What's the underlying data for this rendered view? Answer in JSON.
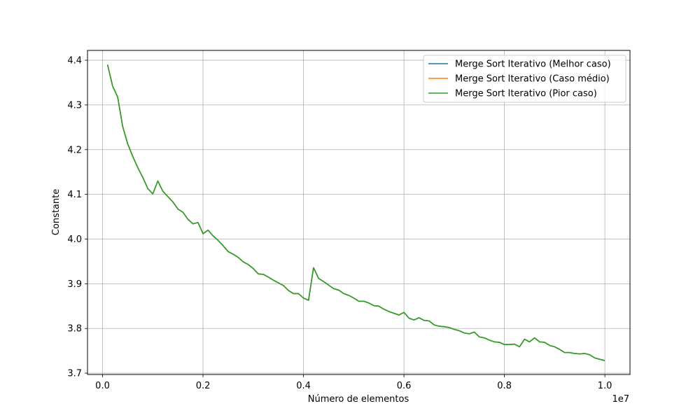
{
  "chart_data": {
    "type": "line",
    "title": "",
    "xlabel": "Número de elementos",
    "ylabel": "Constante",
    "x_offset_label": "1e7",
    "xlim": [
      -300000,
      10500000
    ],
    "ylim": [
      3.697,
      4.422
    ],
    "grid": true,
    "legend_position": "top-right",
    "x_ticks": [
      {
        "value": 0,
        "label": "0.0"
      },
      {
        "value": 2000000,
        "label": "0.2"
      },
      {
        "value": 4000000,
        "label": "0.4"
      },
      {
        "value": 6000000,
        "label": "0.6"
      },
      {
        "value": 8000000,
        "label": "0.8"
      },
      {
        "value": 10000000,
        "label": "1.0"
      }
    ],
    "y_ticks": [
      {
        "value": 3.7,
        "label": "3.7"
      },
      {
        "value": 3.8,
        "label": "3.8"
      },
      {
        "value": 3.9,
        "label": "3.9"
      },
      {
        "value": 4.0,
        "label": "4.0"
      },
      {
        "value": 4.1,
        "label": "4.1"
      },
      {
        "value": 4.2,
        "label": "4.2"
      },
      {
        "value": 4.3,
        "label": "4.3"
      },
      {
        "value": 4.4,
        "label": "4.4"
      }
    ],
    "x": [
      100000,
      200000,
      300000,
      400000,
      500000,
      600000,
      700000,
      800000,
      900000,
      1000000,
      1100000,
      1200000,
      1300000,
      1400000,
      1500000,
      1600000,
      1700000,
      1800000,
      1900000,
      2000000,
      2100000,
      2200000,
      2300000,
      2400000,
      2500000,
      2600000,
      2700000,
      2800000,
      2900000,
      3000000,
      3100000,
      3200000,
      3300000,
      3400000,
      3500000,
      3600000,
      3700000,
      3800000,
      3900000,
      4000000,
      4100000,
      4200000,
      4300000,
      4400000,
      4500000,
      4600000,
      4700000,
      4800000,
      4900000,
      5000000,
      5100000,
      5200000,
      5300000,
      5400000,
      5500000,
      5600000,
      5700000,
      5800000,
      5900000,
      6000000,
      6100000,
      6200000,
      6300000,
      6400000,
      6500000,
      6600000,
      6700000,
      6800000,
      6900000,
      7000000,
      7100000,
      7200000,
      7300000,
      7400000,
      7500000,
      7600000,
      7700000,
      7800000,
      7900000,
      8000000,
      8100000,
      8200000,
      8300000,
      8400000,
      8500000,
      8600000,
      8700000,
      8800000,
      8900000,
      9000000,
      9100000,
      9200000,
      9300000,
      9400000,
      9500000,
      9600000,
      9700000,
      9800000,
      9900000,
      10000000
    ],
    "series": [
      {
        "name": "Merge Sort Iterativo (Melhor caso)",
        "color": "#1f77b4",
        "values": [
          4.39,
          4.342,
          4.318,
          4.252,
          4.213,
          4.185,
          4.16,
          4.138,
          4.113,
          4.101,
          4.13,
          4.107,
          4.095,
          4.083,
          4.067,
          4.06,
          4.044,
          4.034,
          4.037,
          4.012,
          4.02,
          4.007,
          3.997,
          3.985,
          3.972,
          3.966,
          3.959,
          3.949,
          3.943,
          3.934,
          3.922,
          3.921,
          3.915,
          3.908,
          3.902,
          3.896,
          3.885,
          3.878,
          3.878,
          3.868,
          3.863,
          3.936,
          3.912,
          3.905,
          3.897,
          3.889,
          3.886,
          3.878,
          3.874,
          3.868,
          3.861,
          3.861,
          3.857,
          3.851,
          3.85,
          3.843,
          3.838,
          3.834,
          3.83,
          3.836,
          3.823,
          3.819,
          3.824,
          3.818,
          3.817,
          3.808,
          3.805,
          3.804,
          3.802,
          3.798,
          3.795,
          3.79,
          3.788,
          3.792,
          3.781,
          3.779,
          3.774,
          3.77,
          3.769,
          3.764,
          3.764,
          3.765,
          3.759,
          3.776,
          3.77,
          3.779,
          3.77,
          3.769,
          3.762,
          3.759,
          3.753,
          3.746,
          3.746,
          3.744,
          3.743,
          3.744,
          3.741,
          3.734,
          3.731,
          3.728
        ]
      },
      {
        "name": "Merge Sort Iterativo (Caso médio)",
        "color": "#ff7f0e",
        "values": [
          4.39,
          4.342,
          4.318,
          4.252,
          4.213,
          4.185,
          4.16,
          4.138,
          4.113,
          4.101,
          4.13,
          4.107,
          4.095,
          4.083,
          4.067,
          4.06,
          4.044,
          4.034,
          4.037,
          4.012,
          4.02,
          4.007,
          3.997,
          3.985,
          3.972,
          3.966,
          3.959,
          3.949,
          3.943,
          3.934,
          3.922,
          3.921,
          3.915,
          3.908,
          3.902,
          3.896,
          3.885,
          3.878,
          3.878,
          3.868,
          3.863,
          3.936,
          3.912,
          3.905,
          3.897,
          3.889,
          3.886,
          3.878,
          3.874,
          3.868,
          3.861,
          3.861,
          3.857,
          3.851,
          3.85,
          3.843,
          3.838,
          3.834,
          3.83,
          3.836,
          3.823,
          3.819,
          3.824,
          3.818,
          3.817,
          3.808,
          3.805,
          3.804,
          3.802,
          3.798,
          3.795,
          3.79,
          3.788,
          3.792,
          3.781,
          3.779,
          3.774,
          3.77,
          3.769,
          3.764,
          3.764,
          3.765,
          3.759,
          3.776,
          3.77,
          3.779,
          3.77,
          3.769,
          3.762,
          3.759,
          3.753,
          3.746,
          3.746,
          3.744,
          3.743,
          3.744,
          3.741,
          3.734,
          3.731,
          3.728
        ]
      },
      {
        "name": "Merge Sort Iterativo (Pior caso)",
        "color": "#2ca02c",
        "values": [
          4.39,
          4.342,
          4.318,
          4.252,
          4.213,
          4.185,
          4.16,
          4.138,
          4.113,
          4.101,
          4.13,
          4.107,
          4.095,
          4.083,
          4.067,
          4.06,
          4.044,
          4.034,
          4.037,
          4.012,
          4.02,
          4.007,
          3.997,
          3.985,
          3.972,
          3.966,
          3.959,
          3.949,
          3.943,
          3.934,
          3.922,
          3.921,
          3.915,
          3.908,
          3.902,
          3.896,
          3.885,
          3.878,
          3.878,
          3.868,
          3.863,
          3.936,
          3.912,
          3.905,
          3.897,
          3.889,
          3.886,
          3.878,
          3.874,
          3.868,
          3.861,
          3.861,
          3.857,
          3.851,
          3.85,
          3.843,
          3.838,
          3.834,
          3.83,
          3.836,
          3.823,
          3.819,
          3.824,
          3.818,
          3.817,
          3.808,
          3.805,
          3.804,
          3.802,
          3.798,
          3.795,
          3.79,
          3.788,
          3.792,
          3.781,
          3.779,
          3.774,
          3.77,
          3.769,
          3.764,
          3.764,
          3.765,
          3.759,
          3.776,
          3.77,
          3.779,
          3.77,
          3.769,
          3.762,
          3.759,
          3.753,
          3.746,
          3.746,
          3.744,
          3.743,
          3.744,
          3.741,
          3.734,
          3.731,
          3.728
        ]
      }
    ]
  }
}
